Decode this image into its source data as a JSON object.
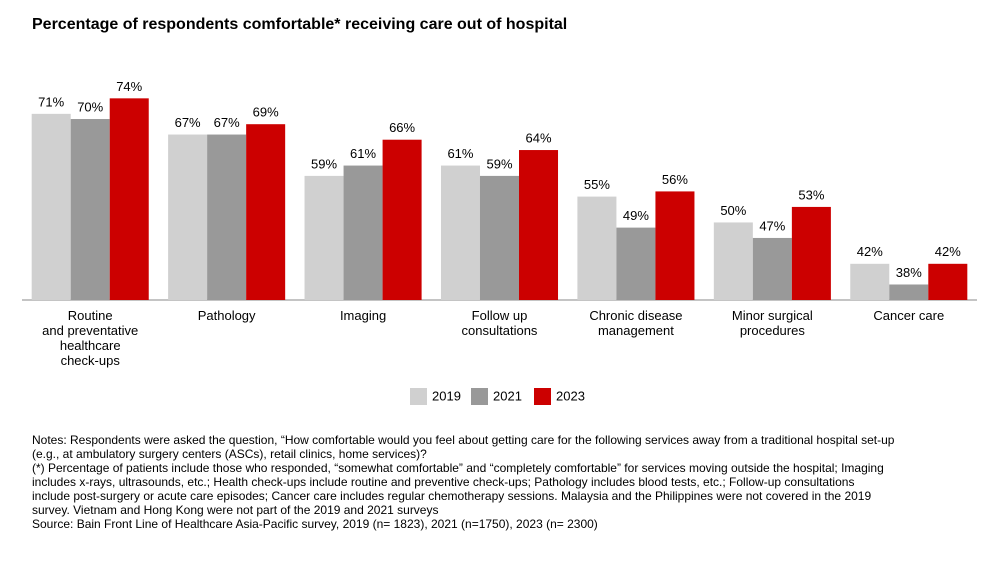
{
  "chart_data": {
    "type": "bar",
    "title": "Percentage of respondents comfortable* receiving care out of hospital",
    "categories": [
      "Routine\nand preventative\nhealthcare\ncheck-ups",
      "Pathology",
      "Imaging",
      "Follow up\nconsultations",
      "Chronic disease\nmanagement",
      "Minor surgical\nprocedures",
      "Cancer care"
    ],
    "series": [
      {
        "name": "2019",
        "color": "#d0d0d0",
        "values": [
          71,
          67,
          59,
          61,
          55,
          50,
          42
        ],
        "value_labels": [
          "71%",
          "67%",
          "59%",
          "61%",
          "55%",
          "50%",
          "42%"
        ]
      },
      {
        "name": "2021",
        "color": "#999999",
        "values": [
          70,
          67,
          61,
          59,
          49,
          47,
          38
        ],
        "value_labels": [
          "70%",
          "67%",
          "61%",
          "59%",
          "49%",
          "47%",
          "38%"
        ]
      },
      {
        "name": "2023",
        "color": "#cc0000",
        "values": [
          74,
          69,
          66,
          64,
          56,
          53,
          42
        ],
        "value_labels": [
          "74%",
          "69%",
          "66%",
          "64%",
          "56%",
          "53%",
          "42%"
        ]
      }
    ],
    "ylim": [
      35,
      76
    ],
    "legend": "bottom",
    "notes": [
      "Notes: Respondents were asked the question, “How comfortable would you feel about getting care for the following services away from a traditional hospital set-up",
      "(e.g., at ambulatory surgery centers (ASCs), retail clinics, home services)?",
      "(*) Percentage of patients include those who responded, “somewhat comfortable” and “completely comfortable” for services moving outside the hospital; Imaging",
      "includes x-rays, ultrasounds, etc.; Health check-ups include routine and preventive check-ups; Pathology includes blood tests, etc.; Follow-up consultations",
      "include post-surgery or acute care episodes; Cancer care includes regular chemotherapy sessions. Malaysia and the Philippines were not covered in the 2019",
      "survey. Vietnam and Hong Kong were not part of the 2019 and 2021 surveys",
      "Source: Bain Front Line of Healthcare Asia-Pacific survey, 2019 (n= 1823), 2021 (n=1750), 2023 (n= 2300)"
    ]
  }
}
